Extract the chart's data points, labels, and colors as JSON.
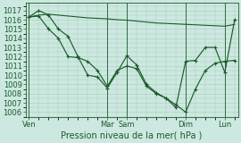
{
  "background_color": "#cce8e0",
  "grid_color": "#aaccbb",
  "line_color": "#1a5c2a",
  "ylim": [
    1005.5,
    1017.8
  ],
  "yticks": [
    1006,
    1007,
    1008,
    1009,
    1010,
    1011,
    1012,
    1013,
    1014,
    1015,
    1016,
    1017
  ],
  "xlabel": "Pression niveau de la mer( hPa )",
  "xlabel_fontsize": 7,
  "tick_fontsize": 6,
  "day_labels": [
    "Ven",
    "Mar",
    "Sam",
    "Dim",
    "Lun"
  ],
  "day_x": [
    0,
    48,
    60,
    96,
    120
  ],
  "xlim": [
    -2,
    128
  ],
  "series_flat": {
    "x": [
      0,
      6,
      12,
      18,
      24,
      30,
      36,
      42,
      48,
      54,
      60,
      66,
      72,
      78,
      84,
      90,
      96,
      102,
      108,
      114,
      120,
      126
    ],
    "y": [
      1016.3,
      1016.5,
      1016.6,
      1016.5,
      1016.4,
      1016.3,
      1016.2,
      1016.15,
      1016.1,
      1016.0,
      1015.95,
      1015.85,
      1015.75,
      1015.65,
      1015.6,
      1015.55,
      1015.5,
      1015.45,
      1015.4,
      1015.35,
      1015.3,
      1015.5
    ]
  },
  "series_a": {
    "x": [
      0,
      6,
      12,
      18,
      24,
      30,
      36,
      42,
      48,
      54,
      60,
      66,
      72,
      78,
      84,
      90,
      96,
      102,
      108,
      114,
      120,
      126
    ],
    "y": [
      1016.3,
      1017.0,
      1016.5,
      1015.0,
      1014.2,
      1012.0,
      1010.0,
      1009.8,
      1008.6,
      1010.3,
      1012.1,
      1011.1,
      1009.0,
      1008.1,
      1007.5,
      1006.8,
      1006.0,
      1008.5,
      1010.5,
      1011.3,
      1011.5,
      1011.6
    ]
  },
  "series_b": {
    "x": [
      0,
      6,
      12,
      18,
      24,
      30,
      36,
      42,
      48,
      54,
      60,
      66,
      72,
      78,
      84,
      90,
      96,
      102,
      108,
      114,
      120,
      126
    ],
    "y": [
      1016.3,
      1016.4,
      1015.0,
      1014.0,
      1012.0,
      1011.9,
      1011.5,
      1010.5,
      1008.8,
      1010.5,
      1011.0,
      1010.7,
      1008.8,
      1008.0,
      1007.5,
      1006.5,
      1011.5,
      1011.6,
      1013.0,
      1013.0,
      1010.3,
      1016.0
    ]
  }
}
